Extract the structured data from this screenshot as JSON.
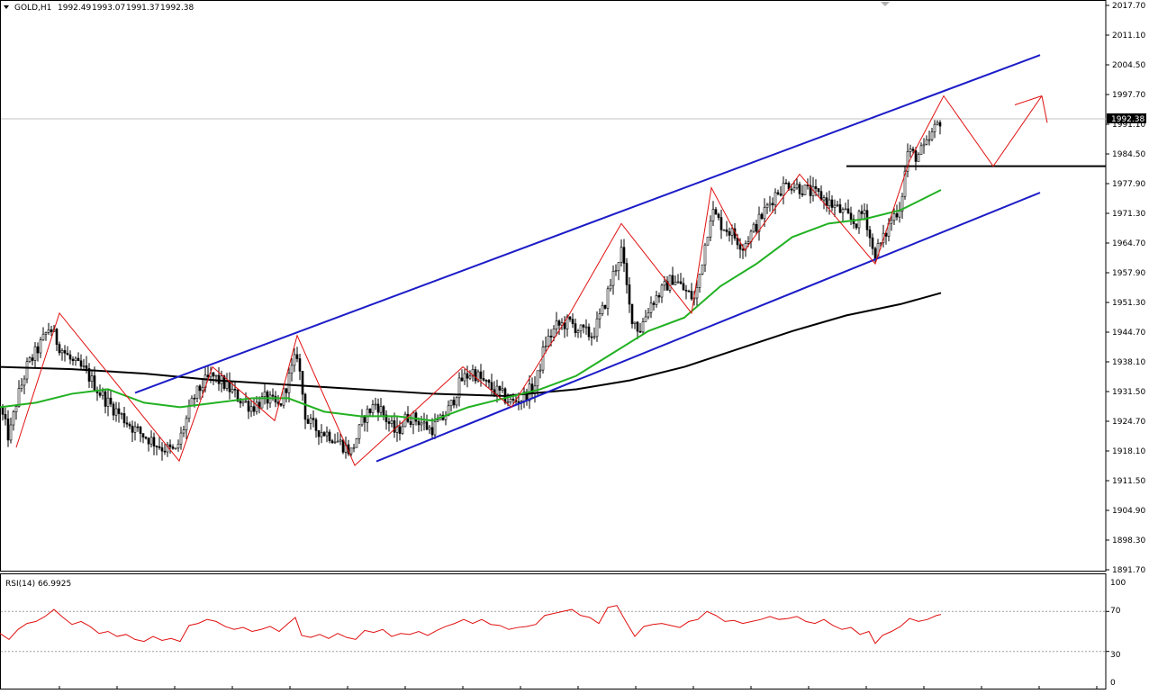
{
  "window": {
    "symbol_label": "GOLD,H1",
    "ohlc": [
      "1992.49",
      "1993.07",
      "1991.37",
      "1992.38"
    ]
  },
  "rsi_panel": {
    "label": "RSI(14) 66.9925",
    "levels": [
      "100",
      "70",
      "30",
      "0"
    ]
  },
  "colors": {
    "background": "#ffffff",
    "candles": "#000000",
    "channel_lines": "#1c1cc8",
    "ma_fast": "#22b122",
    "ma_slow": "#000000",
    "zigzag": "#e01010",
    "rsi_line": "#e01010",
    "price_tag": "#000000"
  },
  "chart_data": [
    {
      "type": "candlestick",
      "symbol": "GOLD",
      "timeframe": "H1",
      "ylim": [
        1891.7,
        2017.7
      ],
      "y_ticks": [
        "2017.70",
        "2011.10",
        "2004.50",
        "1997.70",
        "1991.10",
        "1984.50",
        "1977.90",
        "1971.30",
        "1964.70",
        "1957.90",
        "1951.30",
        "1944.70",
        "1938.10",
        "1931.50",
        "1924.70",
        "1918.10",
        "1911.50",
        "1904.90",
        "1898.30",
        "1891.70"
      ],
      "current_price": "1992.38",
      "close_path": [
        [
          0,
          1928
        ],
        [
          10,
          1921
        ],
        [
          18,
          1929
        ],
        [
          30,
          1937
        ],
        [
          45,
          1942
        ],
        [
          55,
          1946
        ],
        [
          65,
          1942
        ],
        [
          80,
          1938
        ],
        [
          95,
          1936
        ],
        [
          108,
          1932
        ],
        [
          120,
          1929
        ],
        [
          135,
          1926
        ],
        [
          150,
          1923
        ],
        [
          165,
          1921
        ],
        [
          180,
          1919
        ],
        [
          195,
          1918
        ],
        [
          205,
          1924
        ],
        [
          215,
          1930
        ],
        [
          225,
          1933
        ],
        [
          235,
          1935
        ],
        [
          250,
          1933
        ],
        [
          265,
          1930
        ],
        [
          280,
          1928
        ],
        [
          295,
          1930
        ],
        [
          310,
          1928
        ],
        [
          320,
          1934
        ],
        [
          330,
          1940
        ],
        [
          340,
          1925
        ],
        [
          352,
          1923
        ],
        [
          365,
          1922
        ],
        [
          378,
          1920
        ],
        [
          390,
          1918
        ],
        [
          405,
          1926
        ],
        [
          418,
          1929
        ],
        [
          430,
          1925
        ],
        [
          440,
          1922
        ],
        [
          452,
          1926
        ],
        [
          465,
          1925
        ],
        [
          478,
          1923
        ],
        [
          490,
          1925
        ],
        [
          500,
          1928
        ],
        [
          512,
          1934
        ],
        [
          525,
          1936
        ],
        [
          540,
          1933
        ],
        [
          555,
          1931
        ],
        [
          568,
          1929
        ],
        [
          580,
          1930
        ],
        [
          595,
          1933
        ],
        [
          605,
          1942
        ],
        [
          618,
          1946
        ],
        [
          632,
          1947
        ],
        [
          645,
          1945
        ],
        [
          658,
          1944
        ],
        [
          670,
          1950
        ],
        [
          680,
          1957
        ],
        [
          690,
          1963
        ],
        [
          700,
          1949
        ],
        [
          710,
          1945
        ],
        [
          722,
          1951
        ],
        [
          735,
          1954
        ],
        [
          748,
          1957
        ],
        [
          760,
          1954
        ],
        [
          772,
          1952
        ],
        [
          780,
          1961
        ],
        [
          790,
          1972
        ],
        [
          800,
          1969
        ],
        [
          812,
          1967
        ],
        [
          825,
          1964
        ],
        [
          838,
          1968
        ],
        [
          850,
          1972
        ],
        [
          862,
          1976
        ],
        [
          875,
          1978
        ],
        [
          888,
          1977
        ],
        [
          900,
          1976
        ],
        [
          912,
          1975
        ],
        [
          925,
          1973
        ],
        [
          938,
          1971
        ],
        [
          950,
          1969
        ],
        [
          960,
          1972
        ],
        [
          970,
          1962
        ],
        [
          980,
          1965
        ],
        [
          990,
          1970
        ],
        [
          1000,
          1973
        ],
        [
          1008,
          1985
        ],
        [
          1018,
          1984
        ],
        [
          1028,
          1986
        ],
        [
          1038,
          1990
        ],
        [
          1045,
          1992.4
        ]
      ],
      "channel": {
        "upper": [
          [
            150,
            1931.2
          ],
          [
            1155,
            2006.6
          ]
        ],
        "lower": [
          [
            418,
            1915.9
          ],
          [
            1155,
            1975.9
          ]
        ]
      },
      "horizontal_level": {
        "y": 1981.8,
        "x_range": [
          940,
          1228
        ]
      },
      "ma_fast": [
        [
          0,
          1928
        ],
        [
          40,
          1929
        ],
        [
          80,
          1931
        ],
        [
          120,
          1932
        ],
        [
          160,
          1929
        ],
        [
          200,
          1928
        ],
        [
          240,
          1929
        ],
        [
          280,
          1930
        ],
        [
          320,
          1930
        ],
        [
          360,
          1927
        ],
        [
          400,
          1926
        ],
        [
          440,
          1926
        ],
        [
          480,
          1925
        ],
        [
          520,
          1928
        ],
        [
          560,
          1930
        ],
        [
          600,
          1932
        ],
        [
          640,
          1935
        ],
        [
          680,
          1940
        ],
        [
          720,
          1945
        ],
        [
          760,
          1948
        ],
        [
          800,
          1955
        ],
        [
          840,
          1960
        ],
        [
          880,
          1966
        ],
        [
          920,
          1969
        ],
        [
          960,
          1970
        ],
        [
          1000,
          1972
        ],
        [
          1020,
          1974
        ],
        [
          1045,
          1976.5
        ]
      ],
      "ma_slow": [
        [
          0,
          1937
        ],
        [
          80,
          1936.5
        ],
        [
          160,
          1935.5
        ],
        [
          240,
          1934
        ],
        [
          320,
          1933
        ],
        [
          400,
          1932
        ],
        [
          480,
          1931
        ],
        [
          560,
          1930.5
        ],
        [
          640,
          1932
        ],
        [
          700,
          1934
        ],
        [
          760,
          1937
        ],
        [
          820,
          1941
        ],
        [
          880,
          1945
        ],
        [
          940,
          1948.5
        ],
        [
          1000,
          1951
        ],
        [
          1045,
          1953.5
        ]
      ],
      "zigzag": [
        [
          18,
          1919
        ],
        [
          66,
          1949
        ],
        [
          199,
          1916
        ],
        [
          236,
          1937
        ],
        [
          305,
          1925
        ],
        [
          330,
          1944
        ],
        [
          394,
          1915
        ],
        [
          514,
          1937
        ],
        [
          568,
          1928
        ],
        [
          633,
          1949
        ],
        [
          690,
          1969
        ],
        [
          768,
          1949
        ],
        [
          790,
          1977
        ],
        [
          827,
          1963
        ],
        [
          888,
          1980
        ],
        [
          972,
          1960
        ],
        [
          1010,
          1983
        ],
        [
          1048,
          1997.5
        ],
        [
          1103,
          1981.8
        ],
        [
          1157,
          1997.5
        ]
      ],
      "projection_arrow_tip": [
        1163,
        1991.5
      ]
    },
    {
      "type": "line",
      "name": "RSI(14)",
      "value": 66.9925,
      "ylim": [
        0,
        100
      ],
      "levels": [
        70,
        30
      ],
      "points": [
        [
          0,
          48
        ],
        [
          10,
          42
        ],
        [
          20,
          52
        ],
        [
          30,
          58
        ],
        [
          40,
          60
        ],
        [
          50,
          65
        ],
        [
          60,
          72
        ],
        [
          70,
          64
        ],
        [
          80,
          57
        ],
        [
          90,
          60
        ],
        [
          100,
          55
        ],
        [
          110,
          48
        ],
        [
          120,
          50
        ],
        [
          130,
          45
        ],
        [
          140,
          47
        ],
        [
          150,
          42
        ],
        [
          160,
          40
        ],
        [
          170,
          45
        ],
        [
          180,
          41
        ],
        [
          190,
          43
        ],
        [
          200,
          40
        ],
        [
          210,
          56
        ],
        [
          220,
          58
        ],
        [
          230,
          62
        ],
        [
          240,
          60
        ],
        [
          250,
          55
        ],
        [
          260,
          52
        ],
        [
          270,
          54
        ],
        [
          280,
          50
        ],
        [
          290,
          52
        ],
        [
          300,
          55
        ],
        [
          310,
          50
        ],
        [
          320,
          58
        ],
        [
          328,
          64
        ],
        [
          335,
          46
        ],
        [
          345,
          44
        ],
        [
          355,
          47
        ],
        [
          365,
          43
        ],
        [
          375,
          48
        ],
        [
          385,
          44
        ],
        [
          395,
          42
        ],
        [
          405,
          51
        ],
        [
          415,
          49
        ],
        [
          425,
          52
        ],
        [
          435,
          45
        ],
        [
          445,
          48
        ],
        [
          455,
          47
        ],
        [
          465,
          50
        ],
        [
          475,
          46
        ],
        [
          485,
          51
        ],
        [
          495,
          55
        ],
        [
          505,
          58
        ],
        [
          515,
          62
        ],
        [
          525,
          58
        ],
        [
          535,
          62
        ],
        [
          545,
          57
        ],
        [
          555,
          56
        ],
        [
          565,
          52
        ],
        [
          575,
          54
        ],
        [
          585,
          55
        ],
        [
          595,
          57
        ],
        [
          605,
          66
        ],
        [
          615,
          68
        ],
        [
          625,
          70
        ],
        [
          635,
          72
        ],
        [
          645,
          66
        ],
        [
          655,
          64
        ],
        [
          665,
          58
        ],
        [
          675,
          74
        ],
        [
          685,
          76
        ],
        [
          695,
          60
        ],
        [
          705,
          45
        ],
        [
          715,
          55
        ],
        [
          725,
          57
        ],
        [
          735,
          58
        ],
        [
          745,
          56
        ],
        [
          755,
          54
        ],
        [
          765,
          60
        ],
        [
          775,
          62
        ],
        [
          785,
          70
        ],
        [
          795,
          66
        ],
        [
          805,
          60
        ],
        [
          815,
          61
        ],
        [
          825,
          58
        ],
        [
          835,
          60
        ],
        [
          845,
          62
        ],
        [
          855,
          65
        ],
        [
          865,
          62
        ],
        [
          875,
          63
        ],
        [
          885,
          65
        ],
        [
          895,
          60
        ],
        [
          905,
          58
        ],
        [
          915,
          62
        ],
        [
          925,
          56
        ],
        [
          935,
          52
        ],
        [
          945,
          54
        ],
        [
          955,
          47
        ],
        [
          965,
          50
        ],
        [
          972,
          38
        ],
        [
          980,
          46
        ],
        [
          990,
          50
        ],
        [
          1000,
          55
        ],
        [
          1010,
          63
        ],
        [
          1020,
          60
        ],
        [
          1030,
          62
        ],
        [
          1040,
          66
        ],
        [
          1045,
          67
        ]
      ]
    }
  ]
}
